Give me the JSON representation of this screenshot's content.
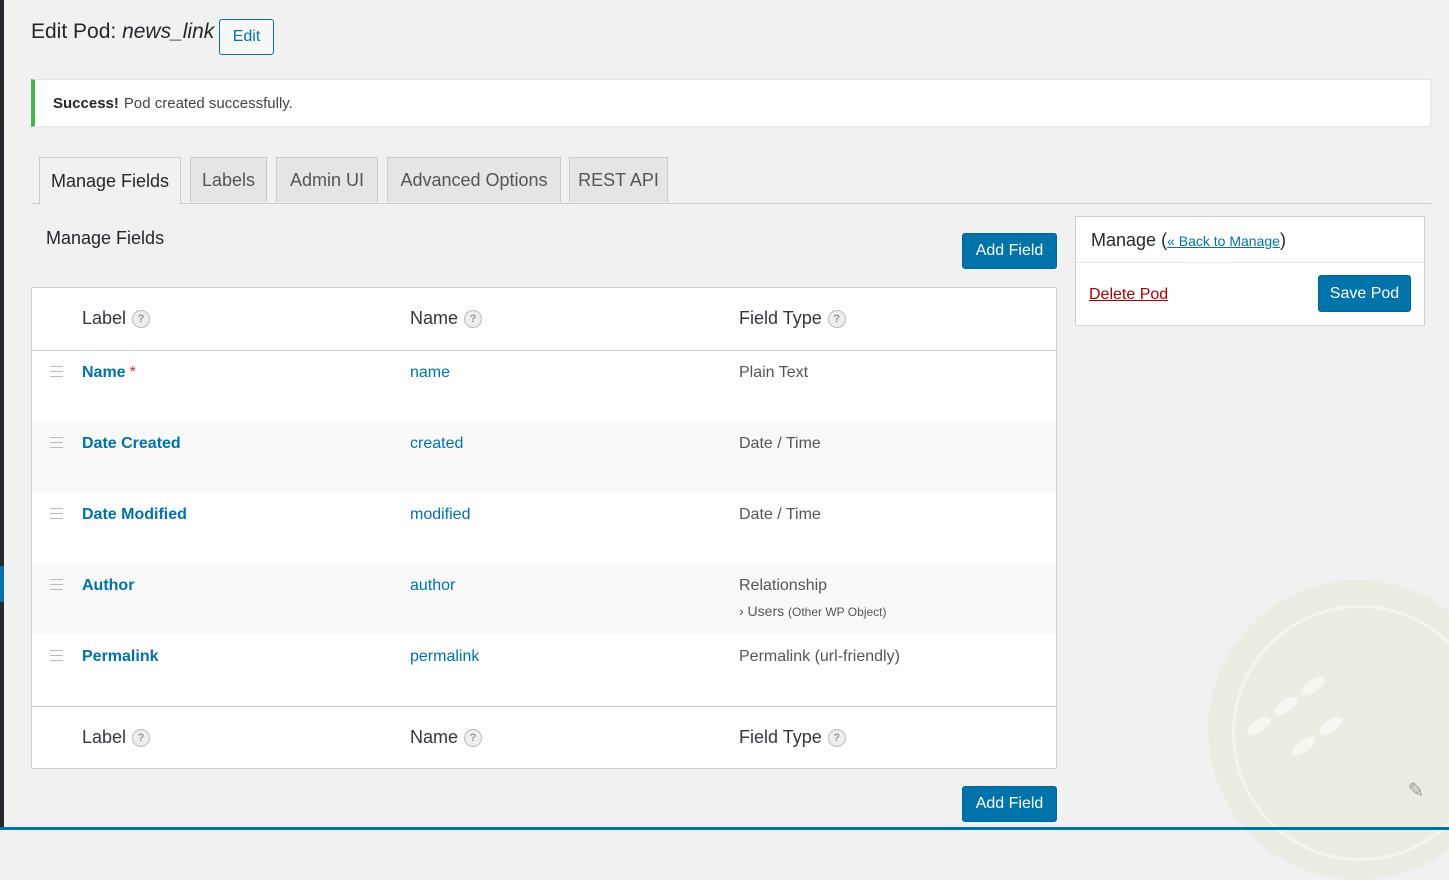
{
  "header": {
    "title_prefix": "Edit Pod: ",
    "pod_name": "news_link",
    "edit_button": "Edit"
  },
  "notice": {
    "strong": "Success!",
    "message": "Pod created successfully."
  },
  "tabs": [
    {
      "label": "Manage Fields",
      "active": true
    },
    {
      "label": "Labels",
      "active": false
    },
    {
      "label": "Admin UI",
      "active": false
    },
    {
      "label": "Advanced Options",
      "active": false
    },
    {
      "label": "REST API",
      "active": false
    }
  ],
  "manage_fields": {
    "heading": "Manage Fields",
    "add_field_label": "Add Field",
    "columns": {
      "label": "Label",
      "name": "Name",
      "type": "Field Type"
    },
    "help_glyph": "?",
    "required_mark": "*",
    "rows": [
      {
        "label": "Name",
        "name": "name",
        "type": "Plain Text",
        "required": true
      },
      {
        "label": "Date Created",
        "name": "created",
        "type": "Date / Time"
      },
      {
        "label": "Date Modified",
        "name": "modified",
        "type": "Date / Time"
      },
      {
        "label": "Author",
        "name": "author",
        "type": "Relationship",
        "subtype": "› Users",
        "subtype_note": "(Other WP Object)"
      },
      {
        "label": "Permalink",
        "name": "permalink",
        "type": "Permalink (url-friendly)"
      }
    ]
  },
  "manage_box": {
    "title": "Manage",
    "back_link": "« Back to Manage",
    "delete_label": "Delete Pod",
    "save_label": "Save Pod"
  },
  "colors": {
    "accent": "#0073aa",
    "success": "#46b450",
    "danger": "#a00"
  }
}
